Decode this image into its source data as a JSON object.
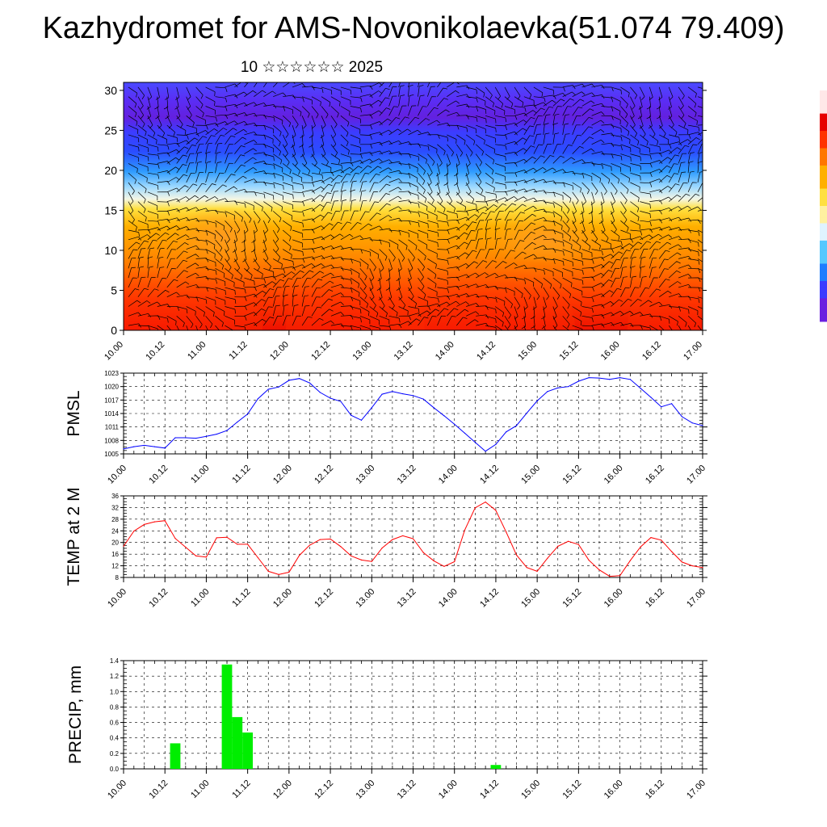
{
  "header": {
    "title": "Kazhydromet for AMS-Novonikolaevka(51.074 79.409)",
    "subtitle": "10 ☆☆☆☆☆☆ 2025"
  },
  "colors": {
    "pmsl_line": "#0000ff",
    "temp_line": "#ff0000",
    "precip_bar": "#00ee00",
    "wind_barb": "#000000",
    "grid": "#000000"
  },
  "chart_data": [
    {
      "id": "cross-section",
      "type": "heatmap",
      "title": "",
      "xlabel": "",
      "ylabel": "",
      "x_ticks": [
        "10.00",
        "10.12",
        "11.00",
        "11.12",
        "12.00",
        "12.12",
        "13.00",
        "13.12",
        "14.00",
        "14.12",
        "15.00",
        "15.12",
        "16.00",
        "16.12",
        "17.00"
      ],
      "y_ticks": [
        0,
        5,
        10,
        15,
        20,
        25,
        30
      ],
      "ylim": [
        0,
        31
      ],
      "overlay": "wind barbs",
      "colorbar_colors": [
        "#ffe8e8",
        "#e60000",
        "#ff3300",
        "#ff7700",
        "#ffb000",
        "#ffe040",
        "#fff1a0",
        "#dff3ff",
        "#55c8ff",
        "#1f7dff",
        "#3b3bff",
        "#6a1fe0"
      ]
    },
    {
      "id": "pmsl",
      "type": "line",
      "ylabel": "PMSL",
      "xlabel": "",
      "x_ticks": [
        "10.00",
        "10.12",
        "11.00",
        "11.12",
        "12.00",
        "12.12",
        "13.00",
        "13.12",
        "14.00",
        "14.12",
        "15.00",
        "15.12",
        "16.00",
        "16.12",
        "17.00"
      ],
      "y_ticks": [
        1005,
        1008,
        1011,
        1014,
        1017,
        1020,
        1023
      ],
      "ylim": [
        1005,
        1023
      ],
      "x_hours": [
        0,
        3,
        6,
        9,
        12,
        15,
        18,
        21,
        24,
        27,
        30,
        33,
        36,
        39,
        42,
        45,
        48,
        51,
        54,
        57,
        60,
        63,
        66,
        69,
        72,
        75,
        78,
        81,
        84,
        87,
        90,
        93,
        96,
        99,
        102,
        105,
        108,
        111,
        114,
        117,
        120,
        123,
        126,
        129,
        132,
        135,
        138,
        141,
        144,
        147,
        150,
        153,
        156,
        159,
        162,
        165,
        168
      ],
      "values": [
        1006.1,
        1006.6,
        1006.9,
        1006.6,
        1006.3,
        1008.6,
        1008.6,
        1008.5,
        1008.9,
        1009.4,
        1010.2,
        1012.1,
        1013.9,
        1017.3,
        1019.4,
        1019.9,
        1021.4,
        1021.8,
        1020.8,
        1018.7,
        1017.4,
        1016.7,
        1013.6,
        1012.5,
        1015.3,
        1018.3,
        1018.9,
        1018.4,
        1018.0,
        1017.2,
        1015.3,
        1013.5,
        1011.6,
        1009.6,
        1007.6,
        1005.6,
        1007.1,
        1009.9,
        1011.3,
        1014.1,
        1016.8,
        1018.9,
        1019.7,
        1020.0,
        1021.2,
        1022.0,
        1021.9,
        1021.6,
        1022.0,
        1021.6,
        1019.6,
        1017.6,
        1015.5,
        1016.2,
        1013.3,
        1011.9,
        1011.3
      ],
      "series": [
        {
          "name": "PMSL",
          "color": "#0000ff"
        }
      ]
    },
    {
      "id": "temp",
      "type": "line",
      "ylabel": "TEMP at 2 M",
      "xlabel": "",
      "x_ticks": [
        "10.00",
        "10.12",
        "11.00",
        "11.12",
        "12.00",
        "12.12",
        "13.00",
        "13.12",
        "14.00",
        "14.12",
        "15.00",
        "15.12",
        "16.00",
        "16.12",
        "17.00"
      ],
      "y_ticks": [
        8,
        12,
        16,
        20,
        24,
        28,
        32,
        36
      ],
      "ylim": [
        8,
        36
      ],
      "x_hours": [
        0,
        3,
        6,
        9,
        12,
        15,
        18,
        21,
        24,
        27,
        30,
        33,
        36,
        39,
        42,
        45,
        48,
        51,
        54,
        57,
        60,
        63,
        66,
        69,
        72,
        75,
        78,
        81,
        84,
        87,
        90,
        93,
        96,
        99,
        102,
        105,
        108,
        111,
        114,
        117,
        120,
        123,
        126,
        129,
        132,
        135,
        138,
        141,
        144,
        147,
        150,
        153,
        156,
        159,
        162,
        165,
        168
      ],
      "values": [
        18.7,
        23.9,
        26.2,
        27.1,
        27.5,
        21.4,
        18.4,
        15.4,
        15.0,
        21.6,
        21.8,
        19.4,
        19.4,
        14.8,
        10.1,
        9.0,
        9.8,
        15.6,
        19.1,
        21.0,
        21.2,
        18.6,
        15.4,
        14.0,
        13.5,
        18.1,
        21.0,
        22.3,
        21.3,
        16.5,
        13.7,
        11.8,
        13.4,
        24.3,
        31.9,
        33.9,
        31.0,
        23.6,
        15.7,
        11.4,
        10.1,
        14.6,
        18.7,
        20.4,
        19.3,
        13.9,
        10.6,
        8.4,
        8.6,
        13.8,
        18.5,
        21.7,
        20.8,
        16.9,
        13.3,
        12.0,
        11.4
      ],
      "series": [
        {
          "name": "TEMP at 2 M",
          "color": "#ff0000"
        }
      ]
    },
    {
      "id": "precip",
      "type": "bar",
      "ylabel": "PRECIP, mm",
      "xlabel": "",
      "x_ticks": [
        "10.00",
        "10.12",
        "11.00",
        "11.12",
        "12.00",
        "12.12",
        "13.00",
        "13.12",
        "14.00",
        "14.12",
        "15.00",
        "15.12",
        "16.00",
        "16.12",
        "17.00"
      ],
      "y_ticks": [
        0.0,
        0.2,
        0.4,
        0.6,
        0.8,
        1.0,
        1.2,
        1.4
      ],
      "ylim": [
        0,
        1.4
      ],
      "x_hours": [
        15,
        30,
        33,
        36,
        108
      ],
      "values": [
        0.33,
        1.35,
        0.67,
        0.47,
        0.05
      ],
      "series": [
        {
          "name": "PRECIP, mm",
          "color": "#00ee00"
        }
      ]
    }
  ]
}
